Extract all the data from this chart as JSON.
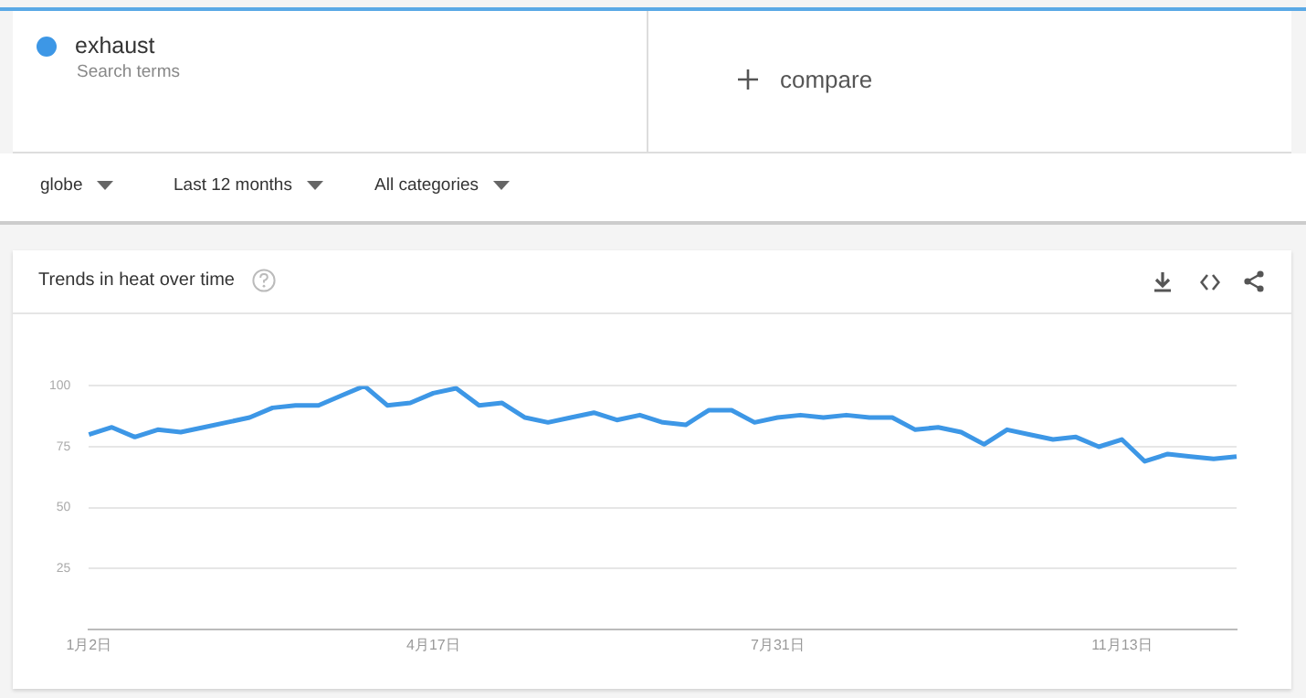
{
  "chart_data": {
    "type": "line",
    "title": "Trends in heat over time",
    "categories": [
      "1月2日",
      null,
      null,
      null,
      null,
      null,
      null,
      null,
      null,
      null,
      null,
      null,
      null,
      null,
      null,
      "4月17日",
      null,
      null,
      null,
      null,
      null,
      null,
      null,
      null,
      null,
      null,
      null,
      null,
      null,
      null,
      "7月31日",
      null,
      null,
      null,
      null,
      null,
      null,
      null,
      null,
      null,
      null,
      null,
      null,
      null,
      null,
      "11月13日",
      null,
      null,
      null,
      null,
      null
    ],
    "series": [
      {
        "name": "exhaust",
        "color": "#3d97e6",
        "values": [
          80,
          83,
          79,
          82,
          81,
          83,
          85,
          87,
          91,
          92,
          92,
          96,
          100,
          92,
          93,
          97,
          99,
          92,
          93,
          87,
          85,
          87,
          89,
          86,
          88,
          85,
          84,
          90,
          90,
          85,
          87,
          88,
          87,
          88,
          87,
          87,
          82,
          83,
          81,
          76,
          82,
          80,
          78,
          79,
          75,
          78,
          69,
          72,
          71,
          70,
          71
        ]
      }
    ],
    "ylim": [
      0,
      100
    ],
    "yticks": [
      {
        "value": 0,
        "label": null
      },
      25,
      50,
      75,
      100
    ],
    "grid": "y",
    "legend": "top left",
    "annotations": [
      "Search terms",
      "compare",
      "globe",
      "Last 12 months",
      "All categories"
    ]
  }
}
